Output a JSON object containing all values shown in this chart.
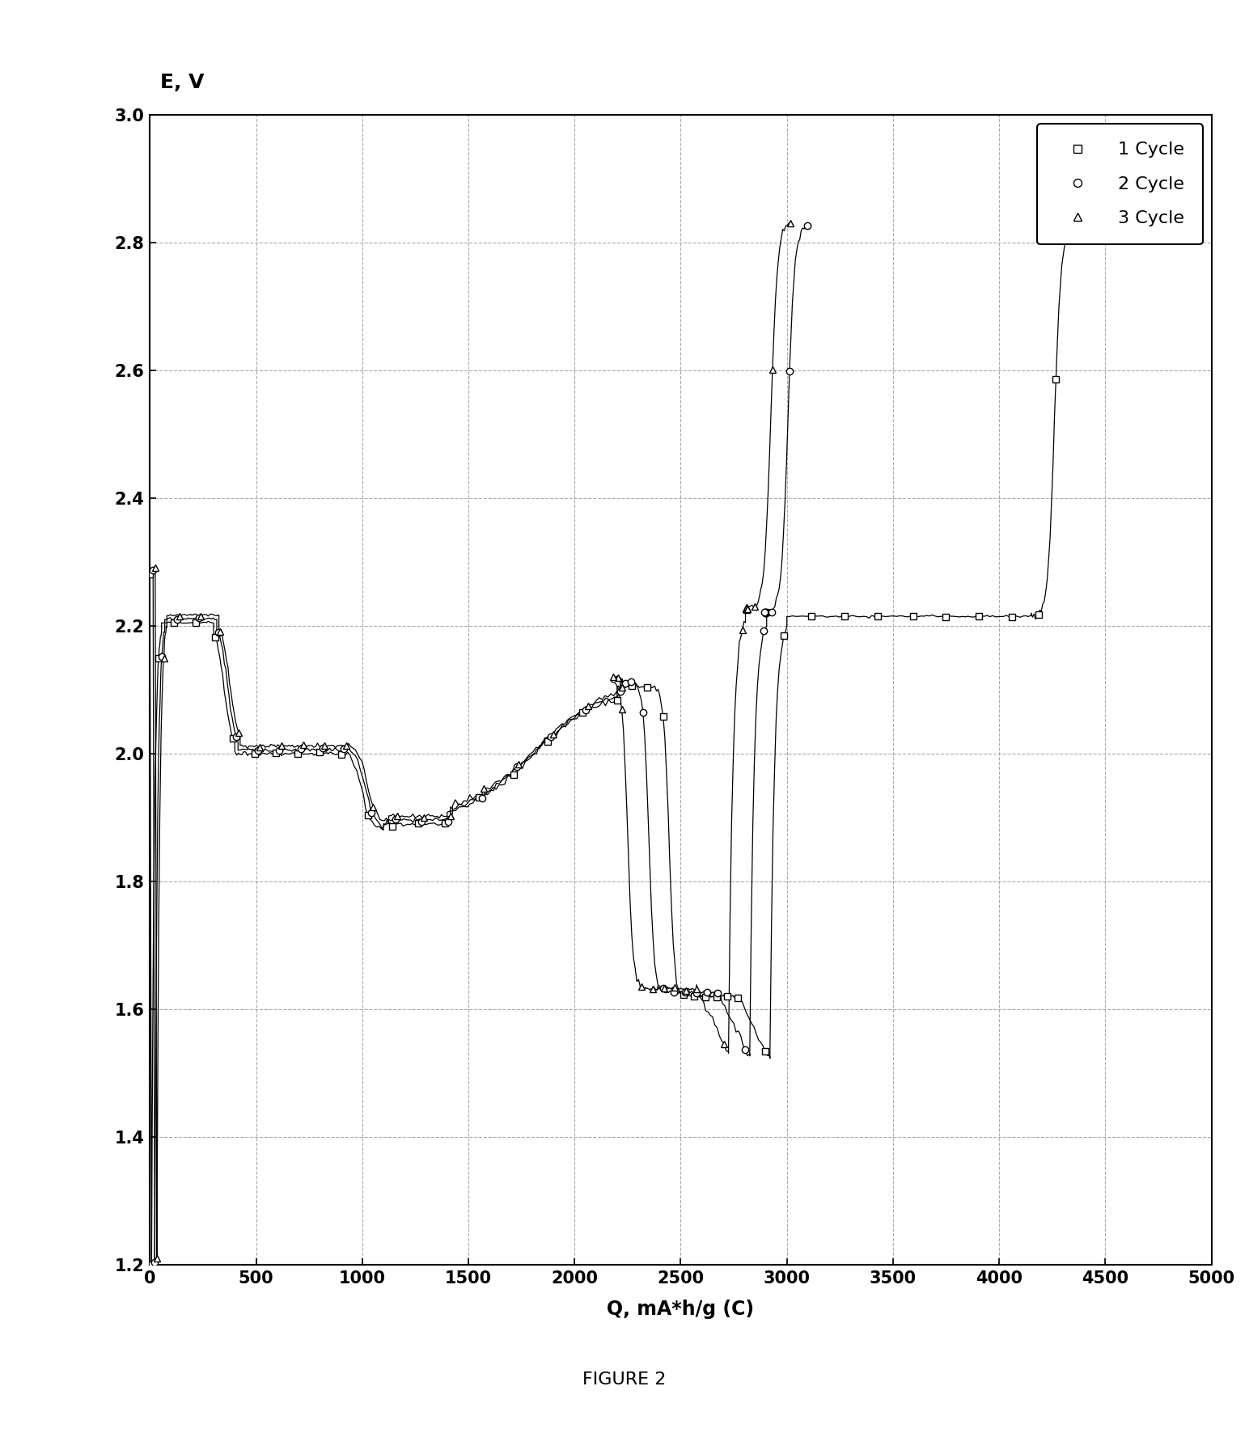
{
  "ylabel_text": "E, V",
  "xlabel": "Q, mA*h/g (C)",
  "xlim": [
    0,
    5000
  ],
  "ylim": [
    1.2,
    3.0
  ],
  "xticks": [
    0,
    500,
    1000,
    1500,
    2000,
    2500,
    3000,
    3500,
    4000,
    4500,
    5000
  ],
  "yticks": [
    1.2,
    1.4,
    1.6,
    1.8,
    2.0,
    2.2,
    2.4,
    2.6,
    2.8,
    3.0
  ],
  "figure_caption": "FIGURE 2",
  "legend_entries": [
    "1 Cycle",
    "2 Cycle",
    "3 Cycle"
  ],
  "markers": [
    "s",
    "o",
    "^"
  ],
  "background_color": "#ffffff",
  "cycle1_discharge_end": 2870,
  "cycle1_charge_end": 4350,
  "cycle2_discharge_end": 2760,
  "cycle2_charge_end": 3080,
  "cycle3_discharge_end": 2650,
  "cycle3_charge_end": 2990
}
